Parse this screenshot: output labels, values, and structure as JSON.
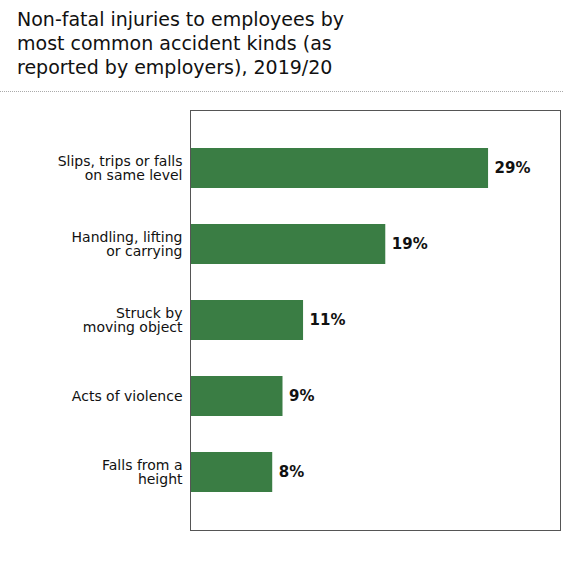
{
  "chart_data": {
    "type": "bar",
    "orientation": "horizontal",
    "title": "Non-fatal injuries to employees by\nmost common accident kinds (as\nreported by employers), 2019/20",
    "categories": [
      "Falls from a\nheight",
      "Acts of violence",
      "Struck by\nmoving object",
      "Handling, lifting\nor carrying",
      "Slips, trips or falls\non same level"
    ],
    "values": [
      8,
      9,
      11,
      19,
      29
    ],
    "value_labels": [
      "8%",
      "9%",
      "11%",
      "19%",
      "29%"
    ],
    "data_labels": true,
    "color": "#3a7d44",
    "xlim": [
      0,
      36
    ],
    "xticks": [],
    "tick_labels": "y",
    "grid": false
  }
}
